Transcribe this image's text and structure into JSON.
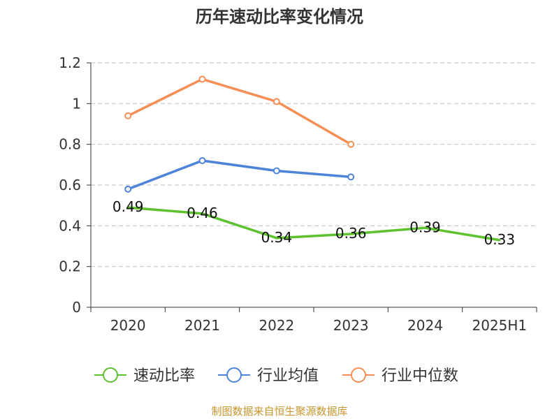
{
  "chart_data": {
    "type": "line",
    "title": "历年速动比率变化情况",
    "categories": [
      "2020",
      "2021",
      "2022",
      "2023",
      "2024",
      "2025H1"
    ],
    "y_ticks": [
      "0",
      "0.2",
      "0.4",
      "0.6",
      "0.8",
      "1",
      "1.2"
    ],
    "ylim": [
      0,
      1.2
    ],
    "grid": true,
    "legend_position": "bottom",
    "series": [
      {
        "name": "速动比率",
        "color": "#5ec22e",
        "values": [
          0.49,
          0.46,
          0.34,
          0.36,
          0.39,
          0.33
        ],
        "data_labels": [
          "0.49",
          "0.46",
          "0.34",
          "0.36",
          "0.39",
          "0.33"
        ]
      },
      {
        "name": "行业均值",
        "color": "#4d84d9",
        "values": [
          0.58,
          0.72,
          0.67,
          0.64,
          null,
          null
        ]
      },
      {
        "name": "行业中位数",
        "color": "#f58f55",
        "values": [
          0.94,
          1.12,
          1.01,
          0.8,
          null,
          null
        ]
      }
    ]
  },
  "source_text": "制图数据来自恒生聚源数据库"
}
